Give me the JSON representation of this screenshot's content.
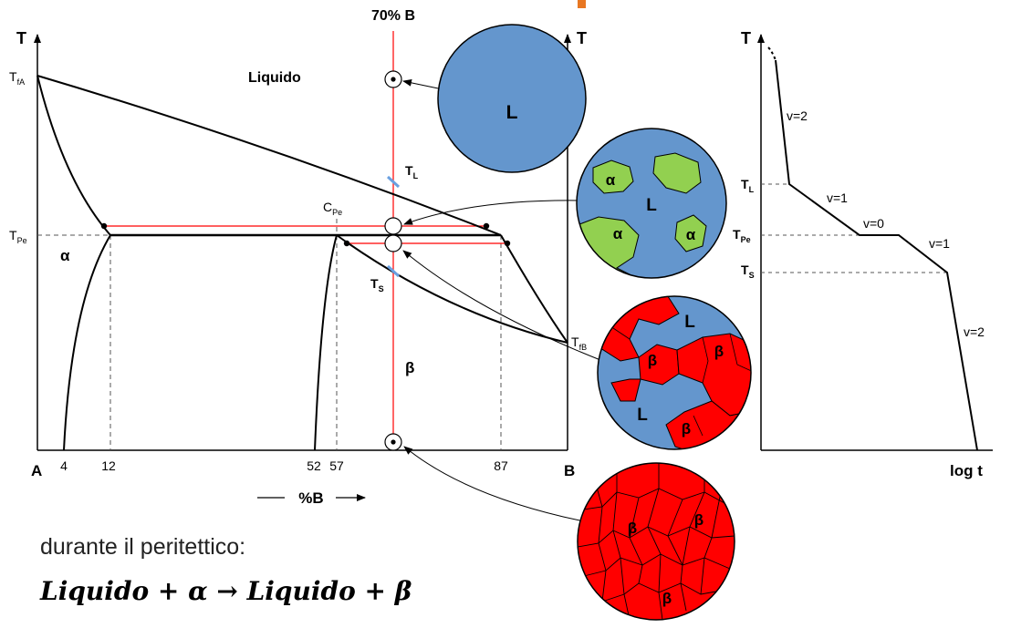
{
  "top_marker": {
    "label": "70% B"
  },
  "phase_diagram": {
    "t_axis_left": "T",
    "t_axis_right": "T",
    "t_fa": {
      "base": "T",
      "sub": "fA"
    },
    "t_fb": {
      "base": "T",
      "sub": "fB"
    },
    "t_pe": {
      "base": "T",
      "sub": "Pe"
    },
    "c_pe": {
      "base": "C",
      "sub": "Pe"
    },
    "t_l": {
      "base": "T",
      "sub": "L"
    },
    "t_s": {
      "base": "T",
      "sub": "S"
    },
    "liquid_region": "Liquido",
    "alpha_region": "α",
    "beta_region": "β",
    "end_a": "A",
    "end_b": "B",
    "ticks": [
      "4",
      "12",
      "52",
      "57",
      "87"
    ],
    "x_axis_label": "%B"
  },
  "microstructures": {
    "liquid": {
      "label": "L"
    },
    "liquid_alpha": {
      "liquid_label": "L",
      "grain_label": "α"
    },
    "liquid_beta": {
      "liquid_label": "L",
      "grain_label": "β"
    },
    "beta_solid": {
      "grain_label": "β"
    }
  },
  "cooling_curve": {
    "t_axis": "T",
    "x_axis": "log t",
    "level_tl": {
      "base": "T",
      "sub": "L"
    },
    "level_tpe": {
      "base": "T",
      "sub": "Pe"
    },
    "level_ts": {
      "base": "T",
      "sub": "S"
    },
    "segments": [
      "v=2",
      "v=1",
      "v=0",
      "v=1",
      "v=2"
    ]
  },
  "colors": {
    "liquid": "#6496cd",
    "alpha": "#92d050",
    "beta": "#ff0000",
    "guide": "#ff0000",
    "accent": "#e87722"
  },
  "caption": "durante il peritettico:",
  "equation": "Liquido + α → Liquido + β"
}
